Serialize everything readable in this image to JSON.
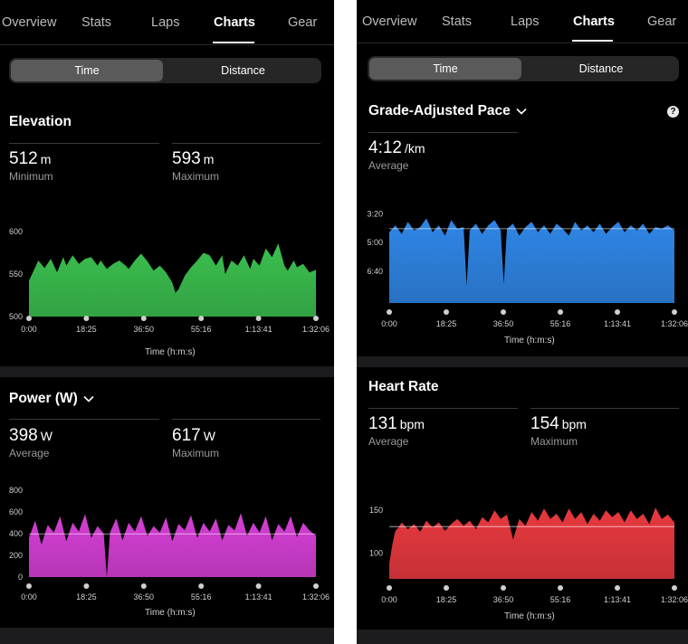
{
  "left": {
    "tabs": [
      {
        "label": "Overview",
        "active": false
      },
      {
        "label": "Stats",
        "active": false
      },
      {
        "label": "Laps",
        "active": false
      },
      {
        "label": "Charts",
        "active": true
      },
      {
        "label": "Gear",
        "active": false
      }
    ],
    "segment": {
      "time_label": "Time",
      "distance_label": "Distance",
      "selected": "Time"
    },
    "elevation": {
      "title": "Elevation",
      "stat1": {
        "value": "512",
        "unit": "m",
        "label": "Minimum"
      },
      "stat2": {
        "value": "593",
        "unit": "m",
        "label": "Maximum"
      },
      "x_axis_title": "Time (h:m:s)"
    },
    "power": {
      "title": "Power (W)",
      "stat1": {
        "value": "398",
        "unit": "W",
        "label": "Average"
      },
      "stat2": {
        "value": "617",
        "unit": "W",
        "label": "Maximum"
      },
      "x_axis_title": "Time (h:m:s)"
    }
  },
  "right": {
    "tabs": [
      {
        "label": "Overview",
        "active": false
      },
      {
        "label": "Stats",
        "active": false
      },
      {
        "label": "Laps",
        "active": false
      },
      {
        "label": "Charts",
        "active": true
      },
      {
        "label": "Gear",
        "active": false
      }
    ],
    "segment": {
      "time_label": "Time",
      "distance_label": "Distance",
      "selected": "Time"
    },
    "gap": {
      "title": "Grade-Adjusted Pace",
      "help_icon_label": "?",
      "stat1": {
        "value": "4:12",
        "unit": "/km",
        "label": "Average"
      },
      "x_axis_title": "Time (h:m:s)"
    },
    "heart": {
      "title": "Heart Rate",
      "stat1": {
        "value": "131",
        "unit": "bpm",
        "label": "Average"
      },
      "stat2": {
        "value": "154",
        "unit": "bpm",
        "label": "Maximum"
      },
      "x_axis_title": "Time (h:m:s)"
    }
  },
  "icons": {
    "dropdown": "chevron-down-icon",
    "help": "question-circle-icon"
  },
  "colors": {
    "background": "#000000",
    "elevation": "#3bbf4f",
    "power": "#d63fd6",
    "pace": "#2f86e6",
    "heart_rate": "#e8393f",
    "selected_segment": "#5a5a5a"
  },
  "chart_data": [
    {
      "id": "elevation",
      "type": "area",
      "title": "Elevation",
      "xlabel": "Time (h:m:s)",
      "ylabel": "",
      "x_ticks": [
        "0:00",
        "18:25",
        "36:50",
        "55:16",
        "1:13:41",
        "1:32:06"
      ],
      "y_ticks": [
        500,
        550,
        600
      ],
      "ylim": [
        500,
        600
      ],
      "x_minutes": [
        0,
        2,
        3,
        5,
        7,
        9,
        11,
        12,
        14,
        16,
        18,
        20,
        22,
        23,
        25,
        27,
        29,
        31,
        32,
        34,
        36,
        38,
        40,
        42,
        44,
        46,
        47,
        48,
        50,
        52,
        54,
        56,
        58,
        60,
        62,
        63,
        65,
        67,
        69,
        71,
        72,
        74,
        76,
        78,
        80,
        82,
        83,
        85,
        86,
        88,
        90,
        92.1
      ],
      "values": [
        542,
        558,
        566,
        557,
        568,
        552,
        570,
        560,
        572,
        562,
        568,
        570,
        560,
        566,
        556,
        562,
        566,
        560,
        556,
        566,
        574,
        565,
        554,
        560,
        552,
        540,
        528,
        532,
        548,
        558,
        566,
        575,
        572,
        560,
        572,
        550,
        566,
        560,
        572,
        556,
        568,
        560,
        580,
        570,
        586,
        560,
        554,
        566,
        558,
        562,
        552,
        555
      ],
      "grid": false,
      "legend": "none"
    },
    {
      "id": "power",
      "type": "area",
      "title": "Power (W)",
      "xlabel": "Time (h:m:s)",
      "ylabel": "",
      "x_ticks": [
        "0:00",
        "18:25",
        "36:50",
        "55:16",
        "1:13:41",
        "1:32:06"
      ],
      "y_ticks": [
        0,
        200,
        400,
        600,
        800
      ],
      "ylim": [
        0,
        800
      ],
      "average_line": 398,
      "x_minutes": [
        0,
        2,
        4,
        6,
        8,
        10,
        12,
        14,
        16,
        18,
        20,
        22,
        24,
        25,
        26,
        28,
        30,
        32,
        34,
        36,
        38,
        40,
        42,
        44,
        46,
        48,
        50,
        52,
        54,
        56,
        58,
        60,
        62,
        64,
        66,
        68,
        70,
        72,
        74,
        76,
        78,
        80,
        82,
        84,
        86,
        88,
        90,
        92.1
      ],
      "values": [
        360,
        520,
        300,
        480,
        410,
        560,
        330,
        500,
        420,
        580,
        360,
        470,
        400,
        0,
        410,
        540,
        340,
        500,
        420,
        560,
        380,
        470,
        410,
        550,
        330,
        490,
        430,
        570,
        360,
        500,
        420,
        540,
        340,
        480,
        430,
        590,
        380,
        500,
        410,
        560,
        340,
        490,
        420,
        560,
        370,
        500,
        430,
        380
      ],
      "grid": false,
      "legend": "none"
    },
    {
      "id": "grade-adjusted-pace",
      "type": "area",
      "title": "Grade-Adjusted Pace",
      "xlabel": "Time (h:m:s)",
      "ylabel": "",
      "x_ticks": [
        "0:00",
        "18:25",
        "36:50",
        "55:16",
        "1:13:41",
        "1:32:06"
      ],
      "y_ticks": [
        "3:20",
        "5:00",
        "6:40"
      ],
      "y_tick_minutes": [
        3.333,
        5.0,
        6.667
      ],
      "ylim_minutes_per_km": [
        3.0,
        8.5
      ],
      "inverted_axis": true,
      "average_line": "4:12",
      "x_minutes": [
        0,
        2,
        4,
        6,
        8,
        10,
        12,
        14,
        16,
        18,
        20,
        22,
        24,
        25,
        26,
        28,
        30,
        32,
        34,
        36,
        37,
        38,
        40,
        42,
        44,
        46,
        48,
        50,
        52,
        54,
        56,
        58,
        60,
        62,
        64,
        66,
        68,
        70,
        72,
        74,
        76,
        78,
        80,
        82,
        84,
        86,
        88,
        90,
        92.1
      ],
      "values": [
        4.4,
        4.0,
        4.5,
        3.8,
        4.3,
        4.1,
        3.6,
        4.4,
        4.0,
        4.6,
        3.7,
        4.2,
        4.1,
        7.5,
        4.3,
        3.9,
        4.5,
        4.0,
        3.7,
        4.3,
        7.4,
        4.2,
        3.9,
        4.6,
        4.1,
        3.8,
        4.4,
        4.0,
        4.5,
        3.9,
        4.2,
        4.6,
        3.8,
        4.3,
        4.0,
        4.4,
        3.9,
        4.5,
        4.1,
        3.8,
        4.4,
        4.0,
        4.3,
        3.9,
        4.5,
        4.1,
        4.2,
        4.0,
        4.3
      ],
      "grid": false,
      "legend": "none"
    },
    {
      "id": "heart-rate",
      "type": "area",
      "title": "Heart Rate",
      "xlabel": "Time (h:m:s)",
      "ylabel": "",
      "x_ticks": [
        "0:00",
        "18:25",
        "36:50",
        "55:16",
        "1:13:41",
        "1:32:06"
      ],
      "y_ticks": [
        100,
        150
      ],
      "ylim": [
        70,
        165
      ],
      "average_line": 131,
      "x_minutes": [
        0,
        1,
        2,
        3,
        4,
        6,
        8,
        10,
        12,
        14,
        16,
        18,
        20,
        22,
        24,
        26,
        28,
        30,
        32,
        34,
        36,
        38,
        40,
        42,
        44,
        46,
        48,
        50,
        52,
        54,
        56,
        58,
        60,
        62,
        64,
        66,
        68,
        70,
        72,
        74,
        76,
        78,
        80,
        82,
        84,
        86,
        88,
        90,
        92.1
      ],
      "values": [
        88,
        110,
        126,
        130,
        136,
        128,
        134,
        125,
        138,
        130,
        136,
        126,
        134,
        140,
        132,
        138,
        128,
        142,
        136,
        150,
        140,
        145,
        116,
        140,
        132,
        148,
        138,
        152,
        140,
        146,
        136,
        152,
        140,
        148,
        134,
        146,
        138,
        150,
        142,
        148,
        136,
        150,
        140,
        146,
        134,
        153,
        140,
        145,
        136
      ],
      "grid": false,
      "legend": "none"
    }
  ]
}
